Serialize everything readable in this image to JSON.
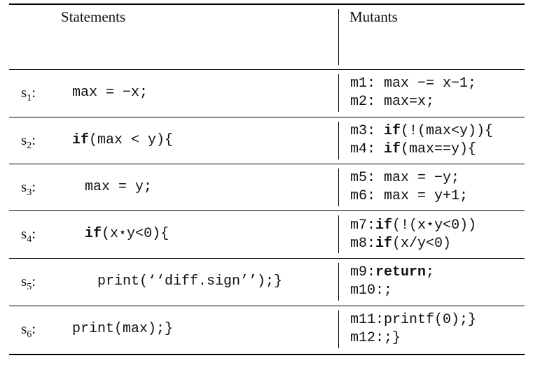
{
  "headers": {
    "statements": "Statements",
    "mutants": "Mutants"
  },
  "rows": [
    {
      "label_main": "s",
      "label_sub": "1",
      "label_colon": ":",
      "code_pre": "max = −x;",
      "code_kw": "",
      "code_post": "",
      "mutants": [
        {
          "pre": "m1: max −= x−1;",
          "kw": "",
          "post": ""
        },
        {
          "pre": "m2: max=x;",
          "kw": "",
          "post": ""
        }
      ]
    },
    {
      "label_main": "s",
      "label_sub": "2",
      "label_colon": ":",
      "code_pre": "",
      "code_kw": "if",
      "code_post": "(max < y){",
      "mutants": [
        {
          "pre": "m3: ",
          "kw": "if",
          "post": "(!(max<y)){"
        },
        {
          "pre": "m4: ",
          "kw": "if",
          "post": "(max==y){"
        }
      ]
    },
    {
      "label_main": "s",
      "label_sub": "3",
      "label_colon": ":",
      "code_pre": "max = y;",
      "code_kw": "",
      "code_post": "",
      "mutants": [
        {
          "pre": "m5: max = −y;",
          "kw": "",
          "post": ""
        },
        {
          "pre": "m6: max = y+1;",
          "kw": "",
          "post": ""
        }
      ]
    },
    {
      "label_main": "s",
      "label_sub": "4",
      "label_colon": ":",
      "code_pre": "",
      "code_kw": "if",
      "code_post": "(x⋆y<0){",
      "mutants": [
        {
          "pre": "m7:",
          "kw": "if",
          "post": "(!(x⋆y<0))"
        },
        {
          "pre": "m8:",
          "kw": "if",
          "post": "(x/y<0)"
        }
      ]
    },
    {
      "label_main": "s",
      "label_sub": "5",
      "label_colon": ":",
      "code_pre": "print(‘‘diff.sign’’);}",
      "code_kw": "",
      "code_post": "",
      "mutants": [
        {
          "pre": "m9:",
          "kw": "return",
          "post": ";"
        },
        {
          "pre": "m10:;",
          "kw": "",
          "post": ""
        }
      ]
    },
    {
      "label_main": "s",
      "label_sub": "6",
      "label_colon": ":",
      "code_pre": "print(max);}",
      "code_kw": "",
      "code_post": "",
      "mutants": [
        {
          "pre": "m11:printf(0);}",
          "kw": "",
          "post": ""
        },
        {
          "pre": "m12:;}",
          "kw": "",
          "post": ""
        }
      ]
    }
  ]
}
